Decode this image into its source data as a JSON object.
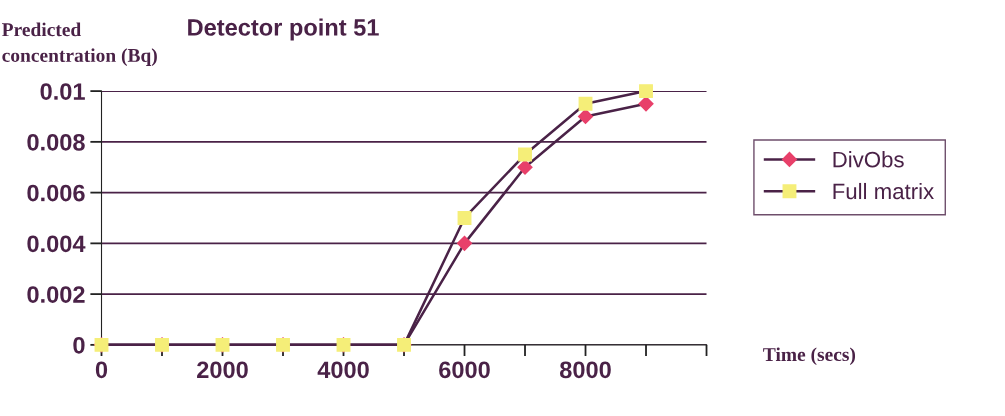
{
  "chart_data": {
    "type": "line",
    "title": "Detector point 51",
    "ylabel": "Predicted\nconcentration (Bq)",
    "xlabel": "Time (secs)",
    "x": [
      0,
      1000,
      2000,
      3000,
      4000,
      5000,
      6000,
      7000,
      8000,
      9000
    ],
    "series": [
      {
        "name": "DivObs",
        "color": "#e8406a",
        "marker": "diamond",
        "values": [
          0,
          0,
          0,
          0,
          0,
          0,
          0.004,
          0.007,
          0.009,
          0.0095
        ]
      },
      {
        "name": "Full matrix",
        "color": "#f5ee78",
        "marker": "square",
        "values": [
          0,
          0,
          0,
          0,
          0,
          0,
          0.005,
          0.0075,
          0.0095,
          0.01
        ]
      }
    ],
    "xlim": [
      0,
      10000
    ],
    "xticks": [
      0,
      {
        "value": 1000,
        "label": null
      },
      2000,
      {
        "value": 3000,
        "label": null
      },
      4000,
      {
        "value": 5000,
        "label": null
      },
      6000,
      {
        "value": 7000,
        "label": null
      },
      8000,
      {
        "value": 9000,
        "label": null
      },
      {
        "value": 10000,
        "label": null
      }
    ],
    "ylim": [
      0,
      0.01
    ],
    "yticks": [
      0,
      0.002,
      0.004,
      0.006,
      0.008,
      0.01
    ],
    "grid": "y",
    "legend": "right",
    "line_style": "solid"
  }
}
